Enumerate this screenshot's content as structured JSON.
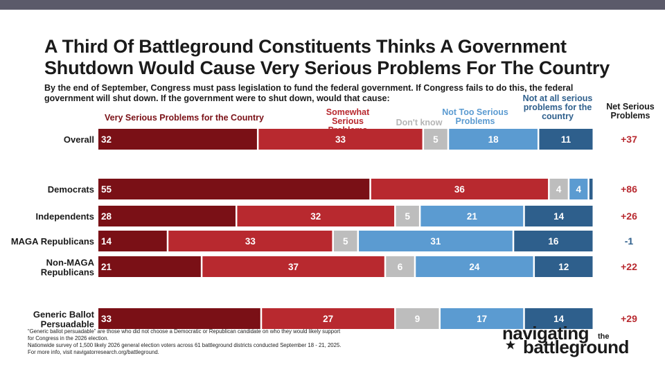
{
  "title": "A Third Of Battleground Constituents Thinks A Government Shutdown Would Cause Very Serious Problems For The Country",
  "subtitle": "By the end of September, Congress must pass legislation to fund the federal government. If Congress fails to do this, the federal government will shut down. If the government were to shut down, would that cause:",
  "headers": {
    "very_serious": "Very Serious Problems for the Country",
    "somewhat_serious": "Somewhat Serious Problems",
    "dont_know": "Don't know",
    "not_too_serious": "Not Too Serious Problems",
    "not_at_all": "Not at all serious problems for the country",
    "net": "Net Serious Problems"
  },
  "colors": {
    "very_serious": "#7a1016",
    "somewhat_serious": "#b8292f",
    "dont_know": "#bdbdbd",
    "not_too_serious": "#5b9bd1",
    "not_at_all": "#2e5f8c",
    "net_positive": "#b8292f",
    "net_negative": "#2e5f8c",
    "topbar": "#5b5a6a"
  },
  "chart_data": {
    "type": "bar",
    "orientation": "horizontal-stacked",
    "categories": [
      "Overall",
      "Democrats",
      "Independents",
      "MAGA Republicans",
      "Non-MAGA Republicans",
      "Generic Ballot Persuadable"
    ],
    "series": [
      {
        "name": "Very Serious Problems for the Country",
        "values": [
          32,
          55,
          28,
          14,
          21,
          33
        ]
      },
      {
        "name": "Somewhat Serious Problems",
        "values": [
          33,
          36,
          32,
          33,
          37,
          27
        ]
      },
      {
        "name": "Don't know",
        "values": [
          5,
          4,
          5,
          5,
          6,
          9
        ]
      },
      {
        "name": "Not Too Serious Problems",
        "values": [
          18,
          4,
          21,
          31,
          24,
          17
        ]
      },
      {
        "name": "Not at all serious problems for the country",
        "values": [
          11,
          1,
          14,
          16,
          12,
          14
        ]
      }
    ],
    "value_labels": [
      [
        "32",
        "33",
        "5",
        "18",
        "11"
      ],
      [
        "55",
        "36",
        "4",
        "4",
        ""
      ],
      [
        "28",
        "32",
        "5",
        "21",
        "14"
      ],
      [
        "14",
        "33",
        "5",
        "31",
        "16"
      ],
      [
        "21",
        "37",
        "6",
        "24",
        "12"
      ],
      [
        "33",
        "27",
        "9",
        "17",
        "14"
      ]
    ],
    "net_label": "Net Serious Problems",
    "net": [
      "+37",
      "+86",
      "+26",
      "-1",
      "+22",
      "+29"
    ],
    "xlim": [
      0,
      100
    ]
  },
  "footnotes": [
    "“Generic ballot persuadable” are those who did not choose a Democratic or Republican candidate on who they would likely support",
    "for Congress in the 2026 election.",
    "Nationwide survey of 1,500 likely 2026 general election voters across 61 battleground districts conducted September 18 - 21, 2025.",
    "For more info, visit navigatorresearch.org/battleground."
  ],
  "logo": {
    "line1": "navigating",
    "the": "the",
    "line2": "battleground"
  }
}
